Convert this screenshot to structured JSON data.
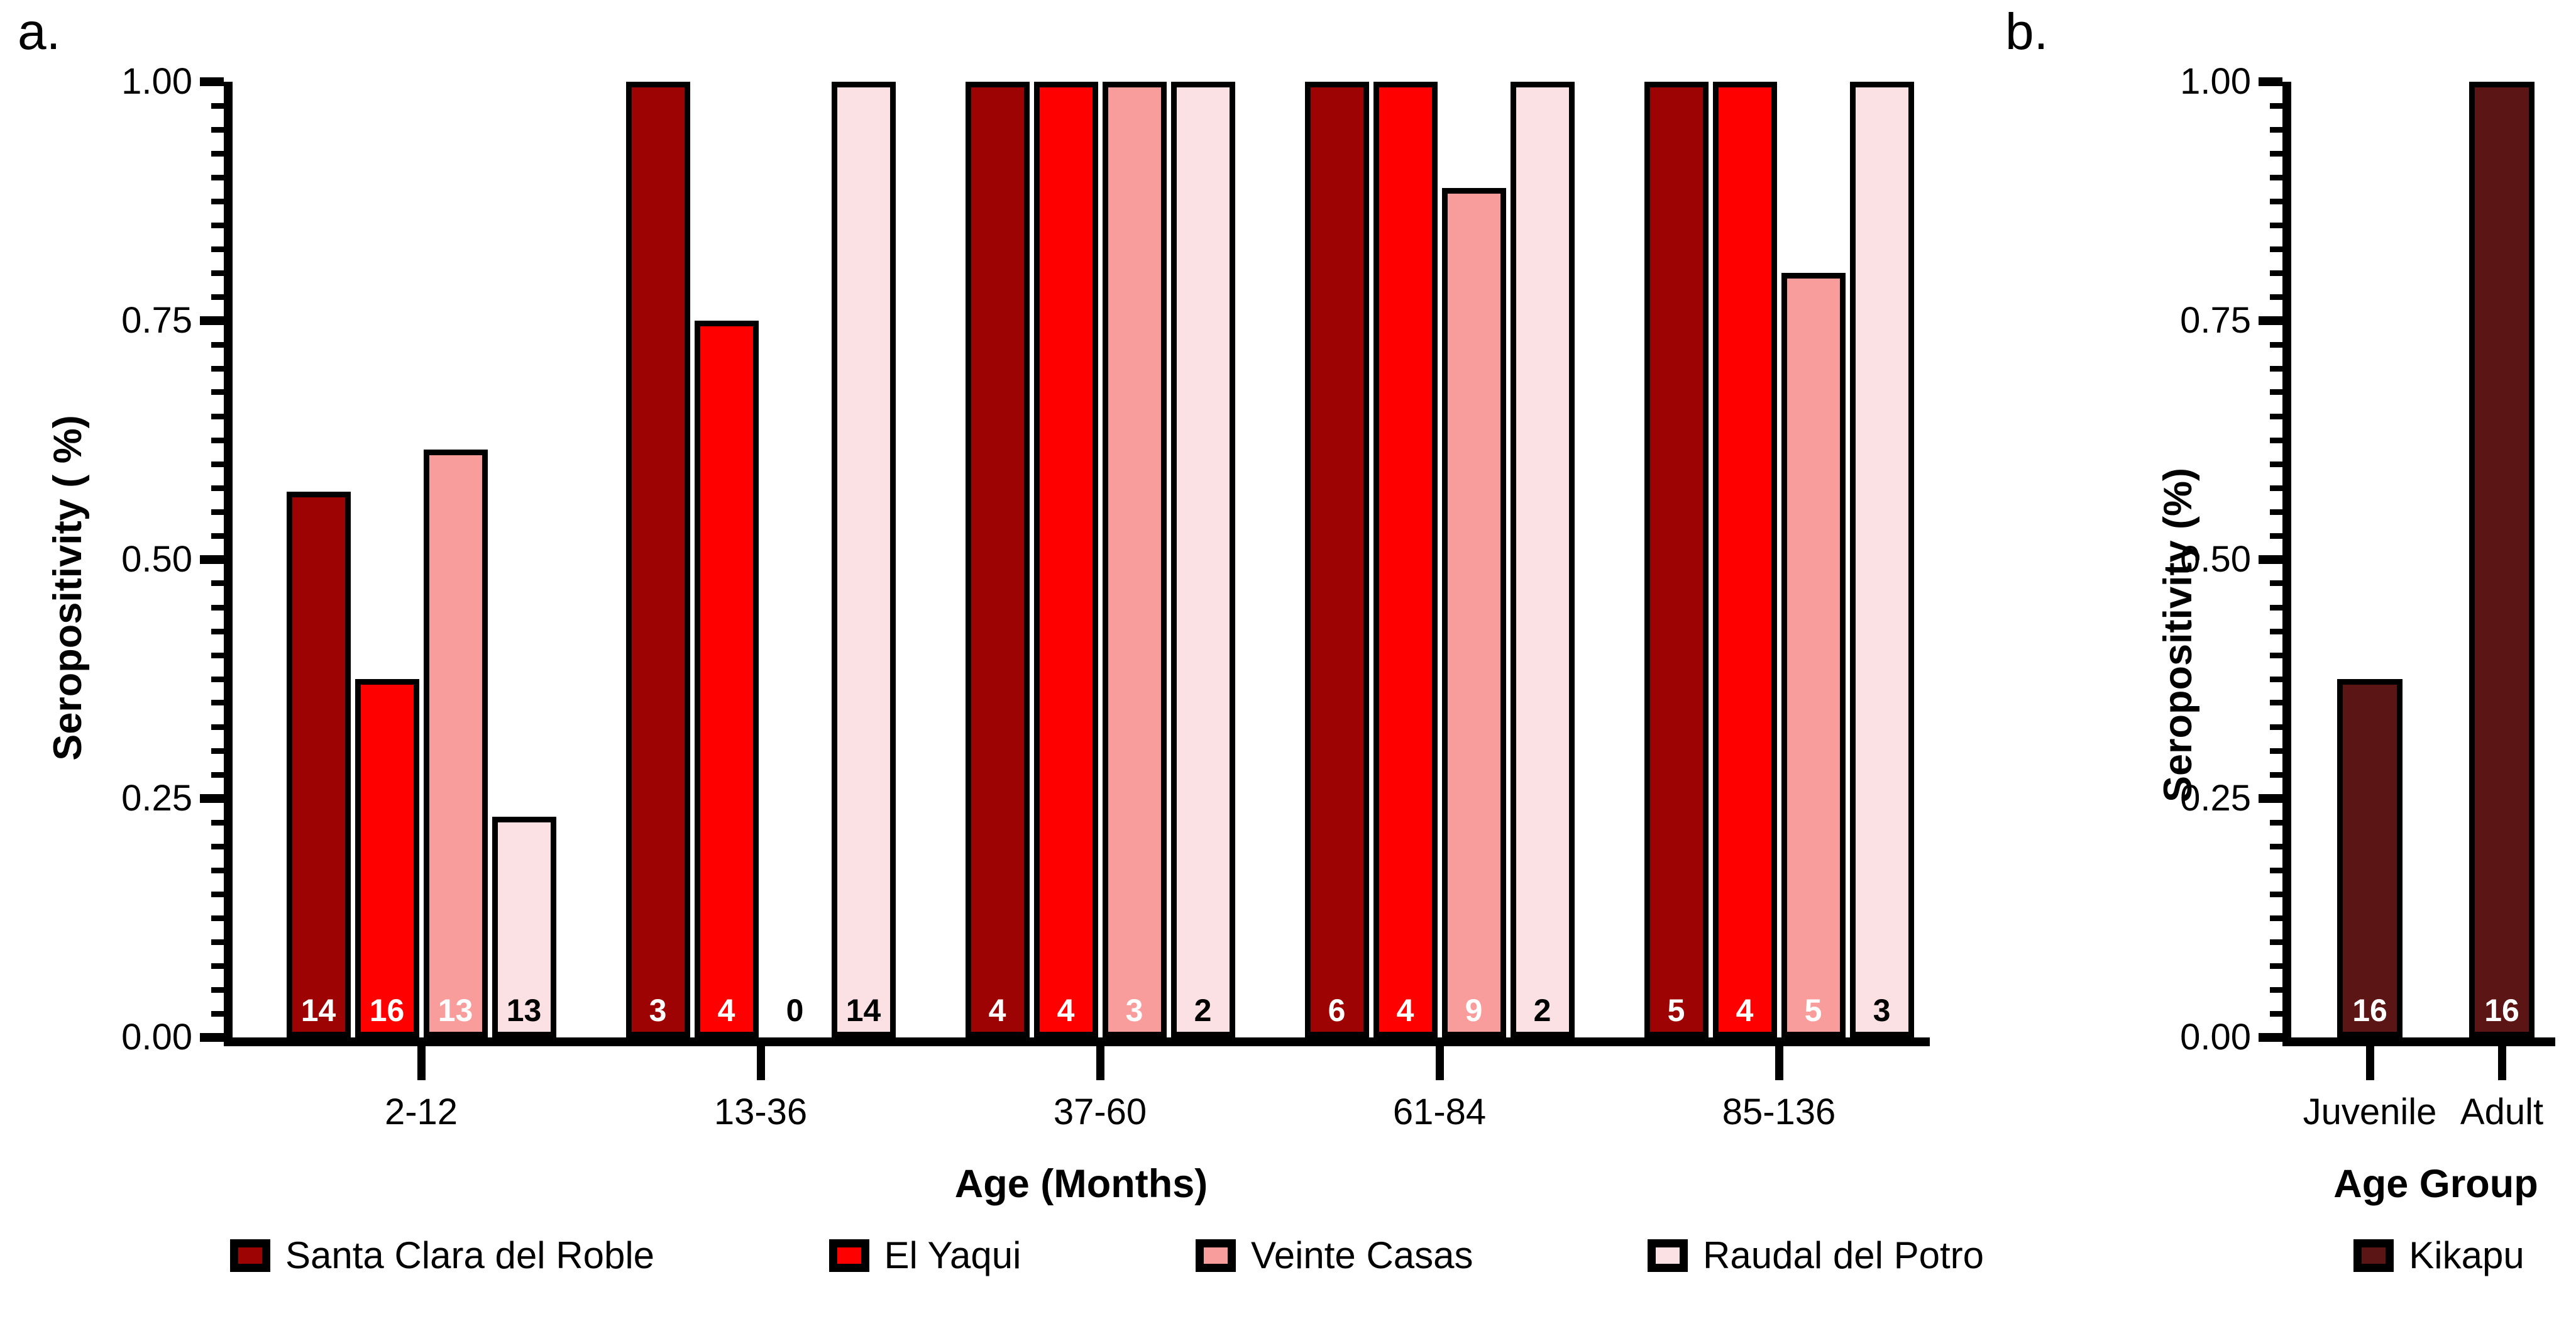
{
  "chart_data": [
    {
      "id": "a",
      "type": "bar",
      "panel_label": "a.",
      "ylabel": "Seropositivity ( %)",
      "xlabel": "Age (Months)",
      "ylim": [
        0,
        1
      ],
      "yticks": [
        "0.00",
        "0.25",
        "0.50",
        "0.75",
        "1.00"
      ],
      "minor_tick_step": 0.025,
      "grid": "off",
      "legend_position": "bottom",
      "categories": [
        "2-12",
        "13-36",
        "37-60",
        "61-84",
        "85-136"
      ],
      "series": [
        {
          "name": "Santa Clara del Roble",
          "color": "#9E0303",
          "bar_label_color": "#ffffff",
          "values": [
            0.571,
            1.0,
            1.0,
            1.0,
            1.0
          ],
          "counts": [
            14,
            3,
            4,
            6,
            5
          ]
        },
        {
          "name": "El Yaqui",
          "color": "#FF0000",
          "bar_label_color": "#ffffff",
          "values": [
            0.375,
            0.75,
            1.0,
            1.0,
            1.0
          ],
          "counts": [
            16,
            4,
            4,
            4,
            4
          ]
        },
        {
          "name": "Veinte Casas",
          "color": "#F99C9C",
          "bar_label_color": "#ffffff",
          "values": [
            0.615,
            0.0,
            1.0,
            0.889,
            0.8
          ],
          "counts": [
            13,
            0,
            3,
            9,
            5
          ]
        },
        {
          "name": "Raudal del Potro",
          "color": "#FBE1E3",
          "bar_label_color": "#000000",
          "values": [
            0.231,
            1.0,
            1.0,
            1.0,
            1.0
          ],
          "counts": [
            13,
            14,
            2,
            2,
            3
          ]
        }
      ]
    },
    {
      "id": "b",
      "type": "bar",
      "panel_label": "b.",
      "ylabel": "Seropositivity (%)",
      "xlabel": "Age Group",
      "ylim": [
        0,
        1
      ],
      "yticks": [
        "0.00",
        "0.25",
        "0.50",
        "0.75",
        "1.00"
      ],
      "minor_tick_step": 0.025,
      "grid": "off",
      "legend_position": "bottom",
      "categories": [
        "Juvenile",
        "Adult"
      ],
      "series": [
        {
          "name": "Kikapu",
          "color": "#5C1515",
          "bar_label_color": "#ffffff",
          "values": [
            0.375,
            1.0
          ],
          "counts": [
            16,
            16
          ]
        }
      ]
    }
  ]
}
